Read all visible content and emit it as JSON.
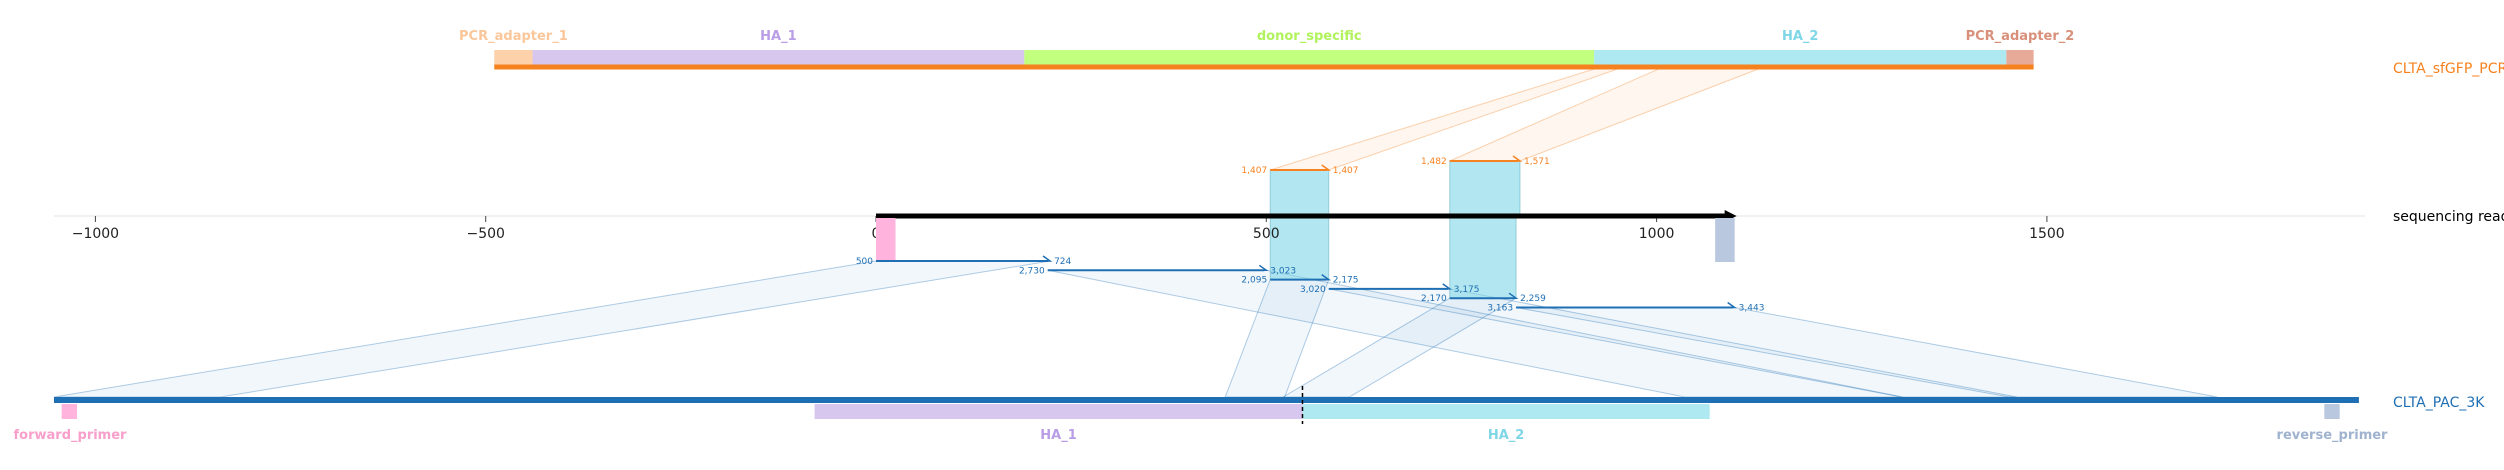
{
  "top_track": {
    "name": "CLTA_sfGFP_PCR",
    "color": "#f6821f",
    "range": [
      -489,
      1483
    ],
    "features": [
      {
        "label": "PCR_adapter_1",
        "start": -489,
        "end": -440,
        "color": "#fdd1a9",
        "text_color": "#fbc699"
      },
      {
        "label": "HA_1",
        "start": -440,
        "end": 190,
        "color": "#d7c7ef",
        "text_color": "#b99de6"
      },
      {
        "label": "donor_specific",
        "start": 190,
        "end": 920,
        "color": "#c2ff7f",
        "text_color": "#b0f35c"
      },
      {
        "label": "HA_2",
        "start": 920,
        "end": 1448,
        "color": "#aee9f1",
        "text_color": "#7fd6e6"
      },
      {
        "label": "PCR_adapter_2",
        "start": 1448,
        "end": 1483,
        "color": "#e7aa98",
        "text_color": "#d8907b"
      }
    ]
  },
  "read_axis": {
    "name": "sequencing read",
    "ticks": [
      -1000,
      -500,
      0,
      500,
      1000,
      1500
    ],
    "read_range": [
      0,
      1100
    ]
  },
  "bottom_track": {
    "name": "CLTA_PAC_3K",
    "color": "#1f6fb4",
    "range": [
      0,
      3000
    ],
    "features": [
      {
        "label": "forward_primer",
        "start": 10,
        "end": 30,
        "color": "#ffb3dd",
        "text_color": "#f89fcb"
      },
      {
        "label": "HA_1",
        "start": 990,
        "end": 1625,
        "color": "#d7c7ef",
        "text_color": "#b99de6"
      },
      {
        "label": "HA_2",
        "start": 1625,
        "end": 2155,
        "color": "#aee9f1",
        "text_color": "#7fd6e6"
      },
      {
        "label": "reverse_primer",
        "start": 2955,
        "end": 2975,
        "color": "#b9c8df",
        "text_color": "#9fb3cf"
      }
    ],
    "cut_site": 1625
  },
  "read_markers": [
    {
      "start": 0,
      "end": 25,
      "color": "#ffb3dd"
    },
    {
      "start": 1075,
      "end": 1100,
      "color": "#b9c8df"
    }
  ],
  "alignments": [
    {
      "track": "top",
      "read": [
        505,
        580
      ],
      "ref": [
        1407,
        1407
      ],
      "labels": [
        "1,407",
        "1,407"
      ],
      "color": "#f6821f"
    },
    {
      "track": "top",
      "read": [
        735,
        825
      ],
      "ref": [
        1482,
        1571
      ],
      "labels": [
        "1,482",
        "1,571"
      ],
      "color": "#f6821f"
    },
    {
      "track": "bottom",
      "read": [
        0,
        223
      ],
      "ref": [
        500,
        724
      ],
      "labels": [
        "500",
        "724"
      ],
      "color": "#1f6fb4"
    },
    {
      "track": "bottom",
      "read": [
        220,
        500
      ],
      "ref": [
        2730,
        3023
      ],
      "labels": [
        "2,730",
        "3,023"
      ],
      "color": "#1f6fb4"
    },
    {
      "track": "bottom",
      "read": [
        505,
        580
      ],
      "ref": [
        2095,
        2175
      ],
      "labels": [
        "2,095",
        "2,175"
      ],
      "color": "#1f6fb4"
    },
    {
      "track": "bottom",
      "read": [
        580,
        735
      ],
      "ref": [
        3020,
        3175
      ],
      "labels": [
        "3,020",
        "3,175"
      ],
      "color": "#1f6fb4"
    },
    {
      "track": "bottom",
      "read": [
        735,
        820
      ],
      "ref": [
        2170,
        2259
      ],
      "labels": [
        "2,170",
        "2,259"
      ],
      "color": "#1f6fb4"
    },
    {
      "track": "bottom",
      "read": [
        820,
        1100
      ],
      "ref": [
        3163,
        3443
      ],
      "labels": [
        "3,163",
        "3,443"
      ],
      "color": "#1f6fb4"
    }
  ]
}
